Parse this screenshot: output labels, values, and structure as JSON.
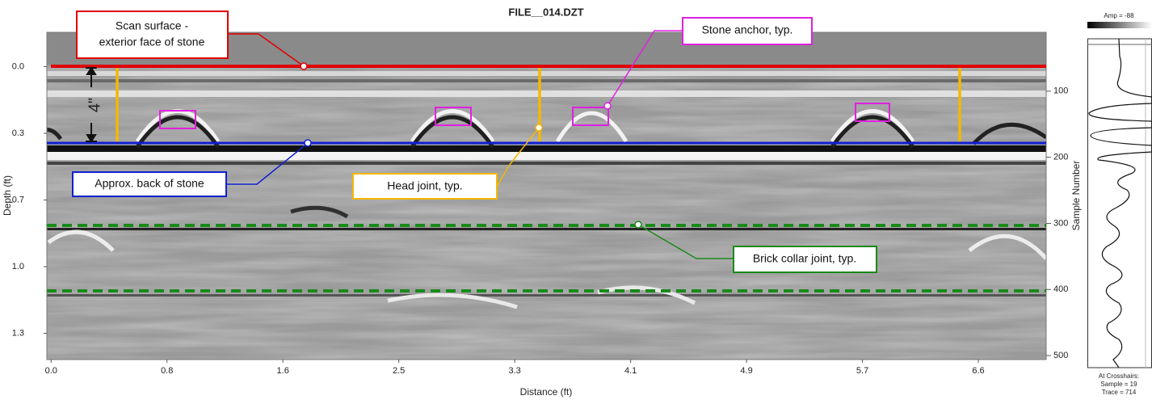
{
  "chart_data": {
    "type": "radargram",
    "title": "FILE__014.DZT",
    "xlabel": "Distance (ft)",
    "ylabel": "Depth (ft)",
    "y2label": "Sample Number",
    "xlim": [
      -0.03,
      7.04
    ],
    "xticks": [
      {
        "value": 0,
        "label": "0.0"
      },
      {
        "value": 0.82,
        "label": "0.8"
      },
      {
        "value": 1.64,
        "label": "1.6"
      },
      {
        "value": 2.46,
        "label": "2.5"
      },
      {
        "value": 3.28,
        "label": "3.3"
      },
      {
        "value": 4.1,
        "label": "4.1"
      },
      {
        "value": 4.92,
        "label": "4.9"
      },
      {
        "value": 5.74,
        "label": "5.7"
      },
      {
        "value": 6.56,
        "label": "6.6"
      }
    ],
    "ylim": [
      1.45,
      -0.17
    ],
    "yticks": [
      {
        "value": 0,
        "label": "0.0"
      },
      {
        "value": 0.33,
        "label": "0.3"
      },
      {
        "value": 0.66,
        "label": "0.7"
      },
      {
        "value": 0.99,
        "label": "1.0"
      },
      {
        "value": 1.32,
        "label": "1.3"
      }
    ],
    "y2lim": [
      506,
      11
    ],
    "y2ticks": [
      100,
      200,
      300,
      400,
      500
    ],
    "annotations": {
      "scan_surface": [
        "Scan surface -",
        "exterior face of stone"
      ],
      "stone_anchor": "Stone anchor, typ.",
      "back_of_stone": "Approx. back of stone",
      "head_joint": "Head joint, typ.",
      "collar_joint": "Brick collar joint, typ.",
      "depth_marker": "4\""
    },
    "side_panel": {
      "amp_label": "Amp = -88",
      "crosshairs": [
        "At Crosshairs:",
        "Sample = 19",
        "Trace = 714"
      ]
    }
  }
}
